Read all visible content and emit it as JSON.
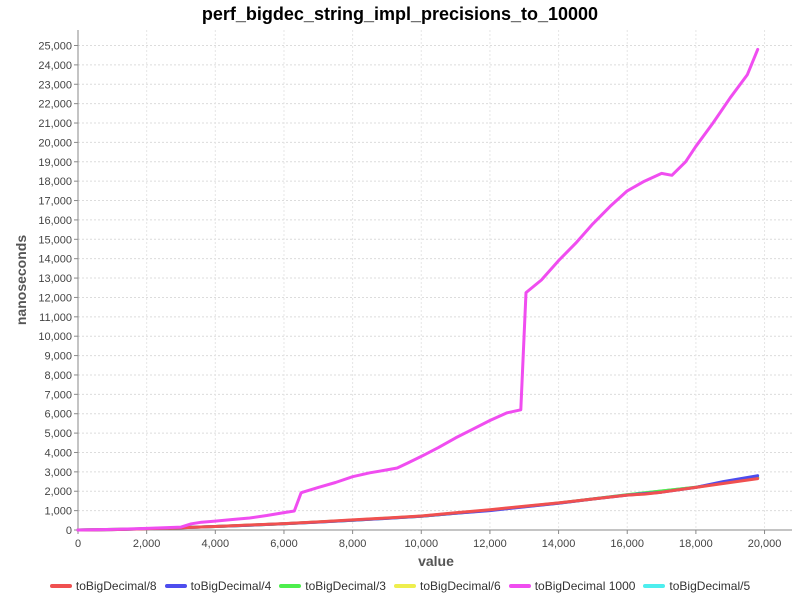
{
  "chart_data": {
    "type": "line",
    "title": "perf_bigdec_string_impl_precisions_to_10000",
    "xlabel": "value",
    "ylabel": "nanoseconds",
    "xlim": [
      0,
      20800
    ],
    "ylim": [
      0,
      25800
    ],
    "x_ticks": [
      "0",
      "2,000",
      "4,000",
      "6,000",
      "8,000",
      "10,000",
      "12,000",
      "14,000",
      "16,000",
      "18,000",
      "20,000"
    ],
    "y_ticks": [
      "0",
      "1,000",
      "2,000",
      "3,000",
      "4,000",
      "5,000",
      "6,000",
      "7,000",
      "8,000",
      "9,000",
      "10,000",
      "11,000",
      "12,000",
      "13,000",
      "14,000",
      "15,000",
      "16,000",
      "17,000",
      "18,000",
      "19,000",
      "20,000",
      "21,000",
      "22,000",
      "23,000",
      "24,000",
      "25,000"
    ],
    "grid": true,
    "legend_position": "bottom",
    "series": [
      {
        "name": "toBigDecimal/8",
        "color": "#f05050",
        "x": [
          0,
          1000,
          2000,
          3000,
          4000,
          5000,
          6000,
          7000,
          8000,
          9000,
          10000,
          11000,
          12000,
          13000,
          14000,
          15000,
          16000,
          16500,
          17000,
          18000,
          19000,
          19800
        ],
        "y": [
          0,
          20,
          60,
          120,
          180,
          260,
          330,
          420,
          520,
          620,
          720,
          890,
          1050,
          1230,
          1400,
          1600,
          1800,
          1850,
          1950,
          2200,
          2450,
          2650
        ]
      },
      {
        "name": "toBigDecimal/4",
        "color": "#4d4dee",
        "x": [
          0,
          1000,
          2000,
          3000,
          4000,
          5000,
          6000,
          7000,
          8000,
          9000,
          10000,
          11000,
          12000,
          13000,
          14000,
          15000,
          16000,
          17000,
          18000,
          18800,
          19800
        ],
        "y": [
          0,
          20,
          60,
          120,
          180,
          250,
          320,
          410,
          500,
          600,
          710,
          860,
          1000,
          1190,
          1380,
          1600,
          1800,
          1950,
          2200,
          2500,
          2800
        ]
      },
      {
        "name": "toBigDecimal/3",
        "color": "#4dee4d",
        "x": [
          0,
          2000,
          4000,
          6000,
          8000,
          10000,
          12000,
          14000,
          16000,
          18000,
          19800
        ],
        "y": [
          0,
          60,
          180,
          320,
          500,
          710,
          1020,
          1390,
          1820,
          2210,
          2720
        ]
      },
      {
        "name": "toBigDecimal/6",
        "color": "#eeee4d",
        "x": [
          0,
          2000,
          4000,
          6000,
          8000,
          10000,
          12000,
          14000,
          16000,
          18000,
          19800
        ],
        "y": [
          0,
          60,
          180,
          325,
          510,
          715,
          1030,
          1395,
          1810,
          2205,
          2690
        ]
      },
      {
        "name": "toBigDecimal 1000",
        "color": "#f04df0",
        "x": [
          0,
          1000,
          2000,
          3000,
          3300,
          3600,
          4000,
          4500,
          5000,
          5500,
          6000,
          6300,
          6500,
          6550,
          7000,
          7500,
          8000,
          8500,
          9000,
          9300,
          9600,
          10000,
          10500,
          11000,
          11500,
          12000,
          12500,
          12900,
          13050,
          13500,
          14000,
          14500,
          15000,
          15500,
          16000,
          16500,
          17000,
          17300,
          17700,
          18000,
          18500,
          19000,
          19500,
          19800
        ],
        "y": [
          0,
          30,
          80,
          150,
          320,
          400,
          460,
          540,
          620,
          750,
          900,
          980,
          1920,
          1950,
          2200,
          2450,
          2750,
          2950,
          3100,
          3200,
          3450,
          3800,
          4250,
          4750,
          5200,
          5650,
          6050,
          6200,
          12250,
          12900,
          13900,
          14800,
          15800,
          16700,
          17500,
          18000,
          18400,
          18300,
          19000,
          19800,
          21000,
          22300,
          23500,
          24800
        ]
      },
      {
        "name": "toBigDecimal/5",
        "color": "#4deeee",
        "x": [
          0,
          2000,
          4000,
          6000,
          8000,
          10000,
          12000,
          14000,
          16000,
          18000,
          19800
        ],
        "y": [
          0,
          60,
          180,
          320,
          505,
          712,
          1025,
          1392,
          1815,
          2208,
          2700
        ]
      }
    ]
  }
}
